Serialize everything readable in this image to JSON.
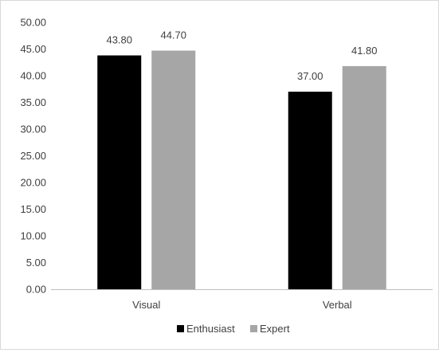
{
  "chart_data": {
    "type": "bar",
    "categories": [
      "Visual",
      "Verbal"
    ],
    "series": [
      {
        "name": "Enthusiast",
        "values": [
          43.8,
          37.0
        ],
        "color": "#000000"
      },
      {
        "name": "Expert",
        "values": [
          44.7,
          41.8
        ],
        "color": "#a6a6a6"
      }
    ],
    "ylim": [
      0,
      50
    ],
    "yticks": [
      "0.00",
      "5.00",
      "10.00",
      "15.00",
      "20.00",
      "25.00",
      "30.00",
      "35.00",
      "40.00",
      "45.00",
      "50.00"
    ],
    "data_labels": [
      [
        "43.80",
        "37.00"
      ],
      [
        "44.70",
        "41.80"
      ]
    ],
    "gridlines": false,
    "legend_position": "bottom",
    "title": "",
    "xlabel": "",
    "ylabel": ""
  }
}
